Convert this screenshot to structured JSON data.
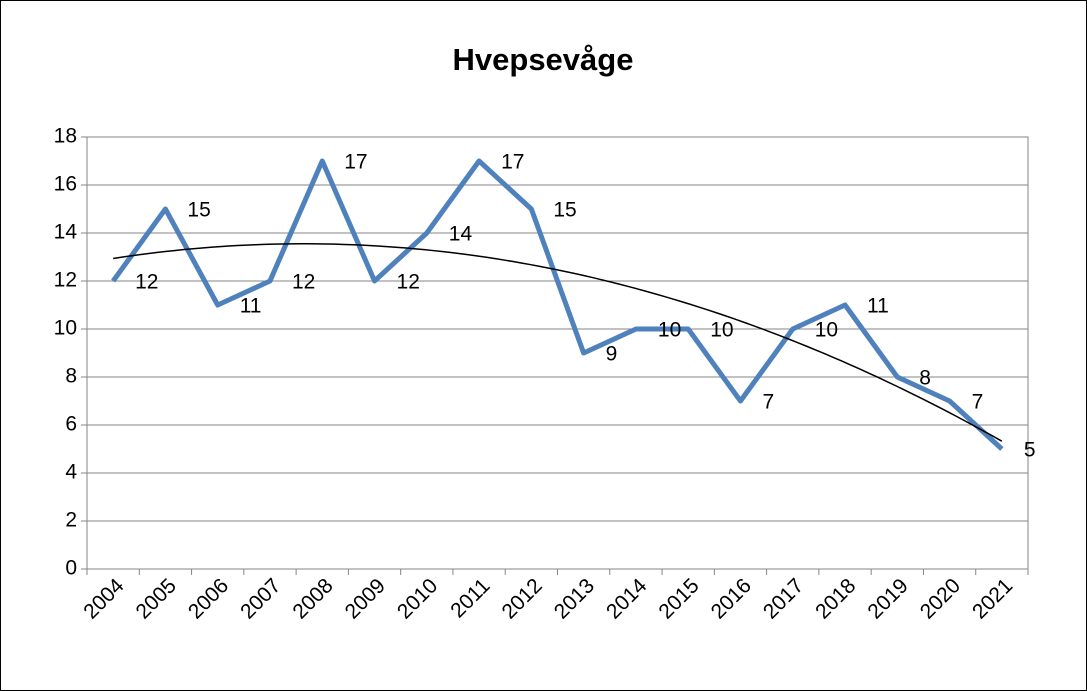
{
  "chart_data": {
    "type": "line",
    "title": "Hvepsevåge",
    "categories": [
      "2004",
      "2005",
      "2006",
      "2007",
      "2008",
      "2009",
      "2010",
      "2011",
      "2012",
      "2013",
      "2014",
      "2015",
      "2016",
      "2017",
      "2018",
      "2019",
      "2020",
      "2021"
    ],
    "series": [
      {
        "name": "Hvepsevåge",
        "color": "#4f81bd",
        "values": [
          12,
          15,
          11,
          12,
          17,
          12,
          14,
          17,
          15,
          9,
          10,
          10,
          7,
          10,
          11,
          8,
          7,
          5
        ]
      }
    ],
    "ylim": [
      0,
      18
    ],
    "yticks": [
      0,
      2,
      4,
      6,
      8,
      10,
      12,
      14,
      16,
      18
    ],
    "grid": true,
    "trendline": {
      "type": "polynomial",
      "order": 2,
      "color": "#000000"
    }
  }
}
